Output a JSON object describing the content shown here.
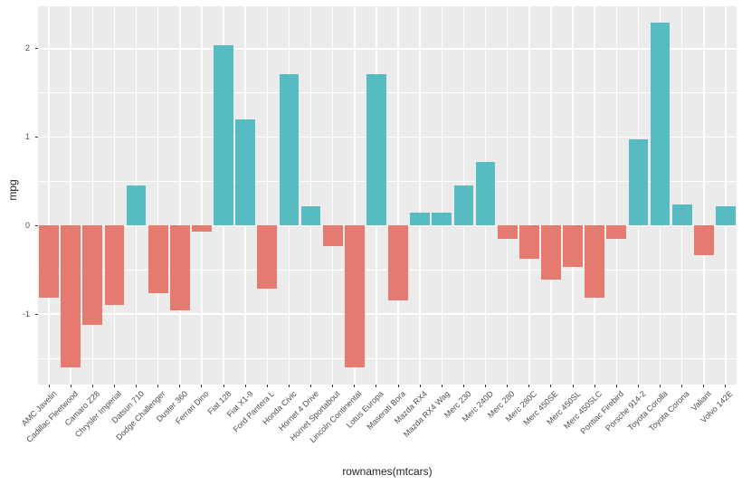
{
  "chart_data": {
    "type": "bar",
    "title": "",
    "xlabel": "rownames(mtcars)",
    "ylabel": "mpg",
    "categories": [
      "AMC Javelin",
      "Cadillac Fleetwood",
      "Camaro Z28",
      "Chrysler Imperial",
      "Datsun 710",
      "Dodge Challenger",
      "Duster 360",
      "Ferrari Dino",
      "Fiat 128",
      "Fiat X1-9",
      "Ford Pantera L",
      "Honda Civic",
      "Hornet 4 Drive",
      "Hornet Sportabout",
      "Lincoln Continental",
      "Lotus Europa",
      "Maserati Bora",
      "Mazda RX4",
      "Mazda RX4 Wag",
      "Merc 230",
      "Merc 240D",
      "Merc 280",
      "Merc 280C",
      "Merc 450SE",
      "Merc 450SL",
      "Merc 450SLC",
      "Pontiac Firebird",
      "Porsche 914-2",
      "Toyota Corolla",
      "Toyota Corona",
      "Valiant",
      "Volvo 142E"
    ],
    "values": [
      -0.811,
      -1.608,
      -1.127,
      -0.894,
      0.45,
      -0.762,
      -0.961,
      -0.065,
      2.042,
      1.196,
      -0.712,
      1.711,
      0.217,
      -0.231,
      -1.608,
      1.711,
      -0.845,
      0.151,
      0.151,
      0.45,
      0.715,
      -0.148,
      -0.38,
      -0.612,
      -0.463,
      -0.811,
      -0.148,
      0.98,
      2.291,
      0.234,
      -0.33,
      0.217
    ],
    "ylim": [
      -1.79,
      2.48
    ],
    "yticks": [
      -1,
      0,
      1,
      2
    ],
    "minor_gridlines": [
      -1.5,
      -0.5,
      0.5,
      1.5
    ],
    "grid": true,
    "legend_position": "none",
    "bar_width_fraction": 0.9,
    "colors": {
      "positive": "#56BCC2",
      "negative": "#E57B70",
      "panel_background": "#EBEBEB",
      "gridline": "#FFFFFF",
      "axis_text": "#4D4D4D",
      "axis_title": "#222222",
      "tick_mark": "#333333",
      "figure_background": "#FFFFFF"
    }
  }
}
